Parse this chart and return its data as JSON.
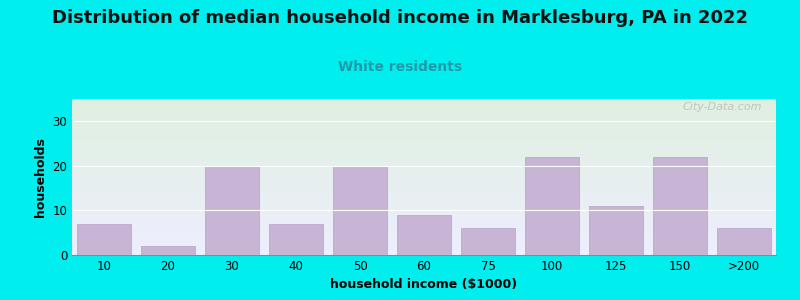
{
  "title": "Distribution of median household income in Marklesburg, PA in 2022",
  "subtitle": "White residents",
  "xlabel": "household income ($1000)",
  "ylabel": "households",
  "background_color": "#00EEEE",
  "plot_bg_gradient_top": "#dff0df",
  "plot_bg_gradient_bottom": "#eeeeff",
  "bar_color": "#c8b4d4",
  "bar_edge_color": "#b8a0c8",
  "categories": [
    "10",
    "20",
    "30",
    "40",
    "50",
    "60",
    "75",
    "100",
    "125",
    "150",
    ">200"
  ],
  "values": [
    7,
    2,
    20,
    7,
    20,
    9,
    6,
    22,
    11,
    22,
    6
  ],
  "ylim": [
    0,
    35
  ],
  "yticks": [
    0,
    10,
    20,
    30
  ],
  "title_fontsize": 13,
  "subtitle_fontsize": 10,
  "axis_label_fontsize": 9,
  "tick_fontsize": 8.5,
  "subtitle_color": "#2299aa",
  "watermark": "City-Data.com"
}
